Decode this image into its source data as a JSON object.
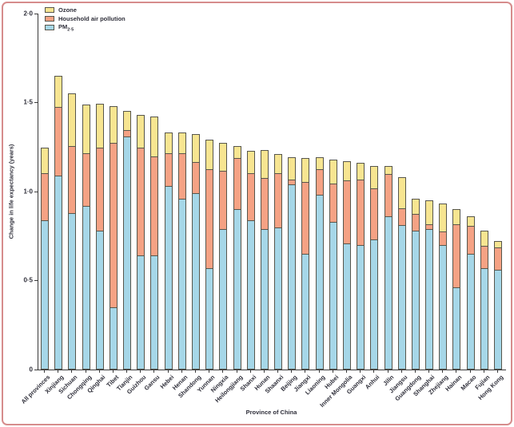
{
  "figure": {
    "ylabel": "Change in life expectancy (years)",
    "xlabel": "Province of China",
    "ytick_labels": [
      "0",
      "0·5",
      "1·0",
      "1·5",
      "2·0"
    ],
    "legend": [
      {
        "name": "ozone",
        "label": "Ozone",
        "color": "#f7e591"
      },
      {
        "name": "household-air-pollution",
        "label": "Household air pollution",
        "color": "#f5a284"
      },
      {
        "name": "pm25",
        "label": "PM",
        "sub": "2·5",
        "color": "#a6d7e8"
      }
    ]
  },
  "colors": {
    "ozone": "#f7e591",
    "household_air_pollution": "#f5a284",
    "pm25": "#a6d7e8",
    "segment_border": "#57564c",
    "axis": "#3a3a3a",
    "text": "#2f2f3a",
    "page_border": "#d68c8c",
    "background": "#ffffff"
  },
  "chart_data": {
    "type": "bar",
    "stacked": true,
    "title": "",
    "xlabel": "Province of China",
    "ylabel": "Change in life expectancy (years)",
    "ylim": [
      0,
      2.0
    ],
    "yticks": [
      0,
      0.5,
      1.0,
      1.5,
      2.0
    ],
    "grid": false,
    "legend_position": "top-left",
    "categories": [
      "All provinces",
      "Xinjiang",
      "Sichuan",
      "Chongqing",
      "Qinghai",
      "Tibet",
      "Tianjin",
      "Guizhou",
      "Gansu",
      "Hebei",
      "Henan",
      "Shandong",
      "Yunnan",
      "Ningxia",
      "Heilongjiang",
      "Shanxi",
      "Hunan",
      "Shaanxi",
      "Beijing",
      "Jiangxi",
      "Liaoning",
      "Hubei",
      "Inner Mongolia",
      "Guangxi",
      "Anhui",
      "Jilin",
      "Jiangsu",
      "Guangdong",
      "Shanghai",
      "Zhejiang",
      "Hainan",
      "Macao",
      "Fujian",
      "Hong Kong"
    ],
    "series": [
      {
        "name": "PM2·5",
        "color": "#a6d7e8",
        "values": [
          0.84,
          1.09,
          0.88,
          0.92,
          0.78,
          0.35,
          1.31,
          0.64,
          0.64,
          1.03,
          0.96,
          0.99,
          0.57,
          0.79,
          0.9,
          0.84,
          0.79,
          0.8,
          1.04,
          0.65,
          0.98,
          0.83,
          0.71,
          0.7,
          0.73,
          0.86,
          0.81,
          0.78,
          0.79,
          0.7,
          0.46,
          0.65,
          0.57,
          0.56
        ]
      },
      {
        "name": "Household air pollution",
        "color": "#f5a284",
        "values": [
          0.27,
          0.39,
          0.38,
          0.3,
          0.47,
          0.93,
          0.04,
          0.61,
          0.56,
          0.19,
          0.26,
          0.18,
          0.56,
          0.33,
          0.29,
          0.27,
          0.29,
          0.31,
          0.03,
          0.41,
          0.15,
          0.22,
          0.36,
          0.37,
          0.29,
          0.24,
          0.1,
          0.1,
          0.03,
          0.08,
          0.36,
          0.16,
          0.13,
          0.13
        ]
      },
      {
        "name": "Ozone",
        "color": "#f7e591",
        "values": [
          0.15,
          0.18,
          0.3,
          0.28,
          0.25,
          0.21,
          0.11,
          0.19,
          0.23,
          0.12,
          0.12,
          0.16,
          0.17,
          0.16,
          0.07,
          0.13,
          0.16,
          0.11,
          0.13,
          0.14,
          0.07,
          0.14,
          0.11,
          0.1,
          0.13,
          0.05,
          0.18,
          0.09,
          0.14,
          0.16,
          0.09,
          0.06,
          0.09,
          0.04
        ]
      }
    ]
  }
}
